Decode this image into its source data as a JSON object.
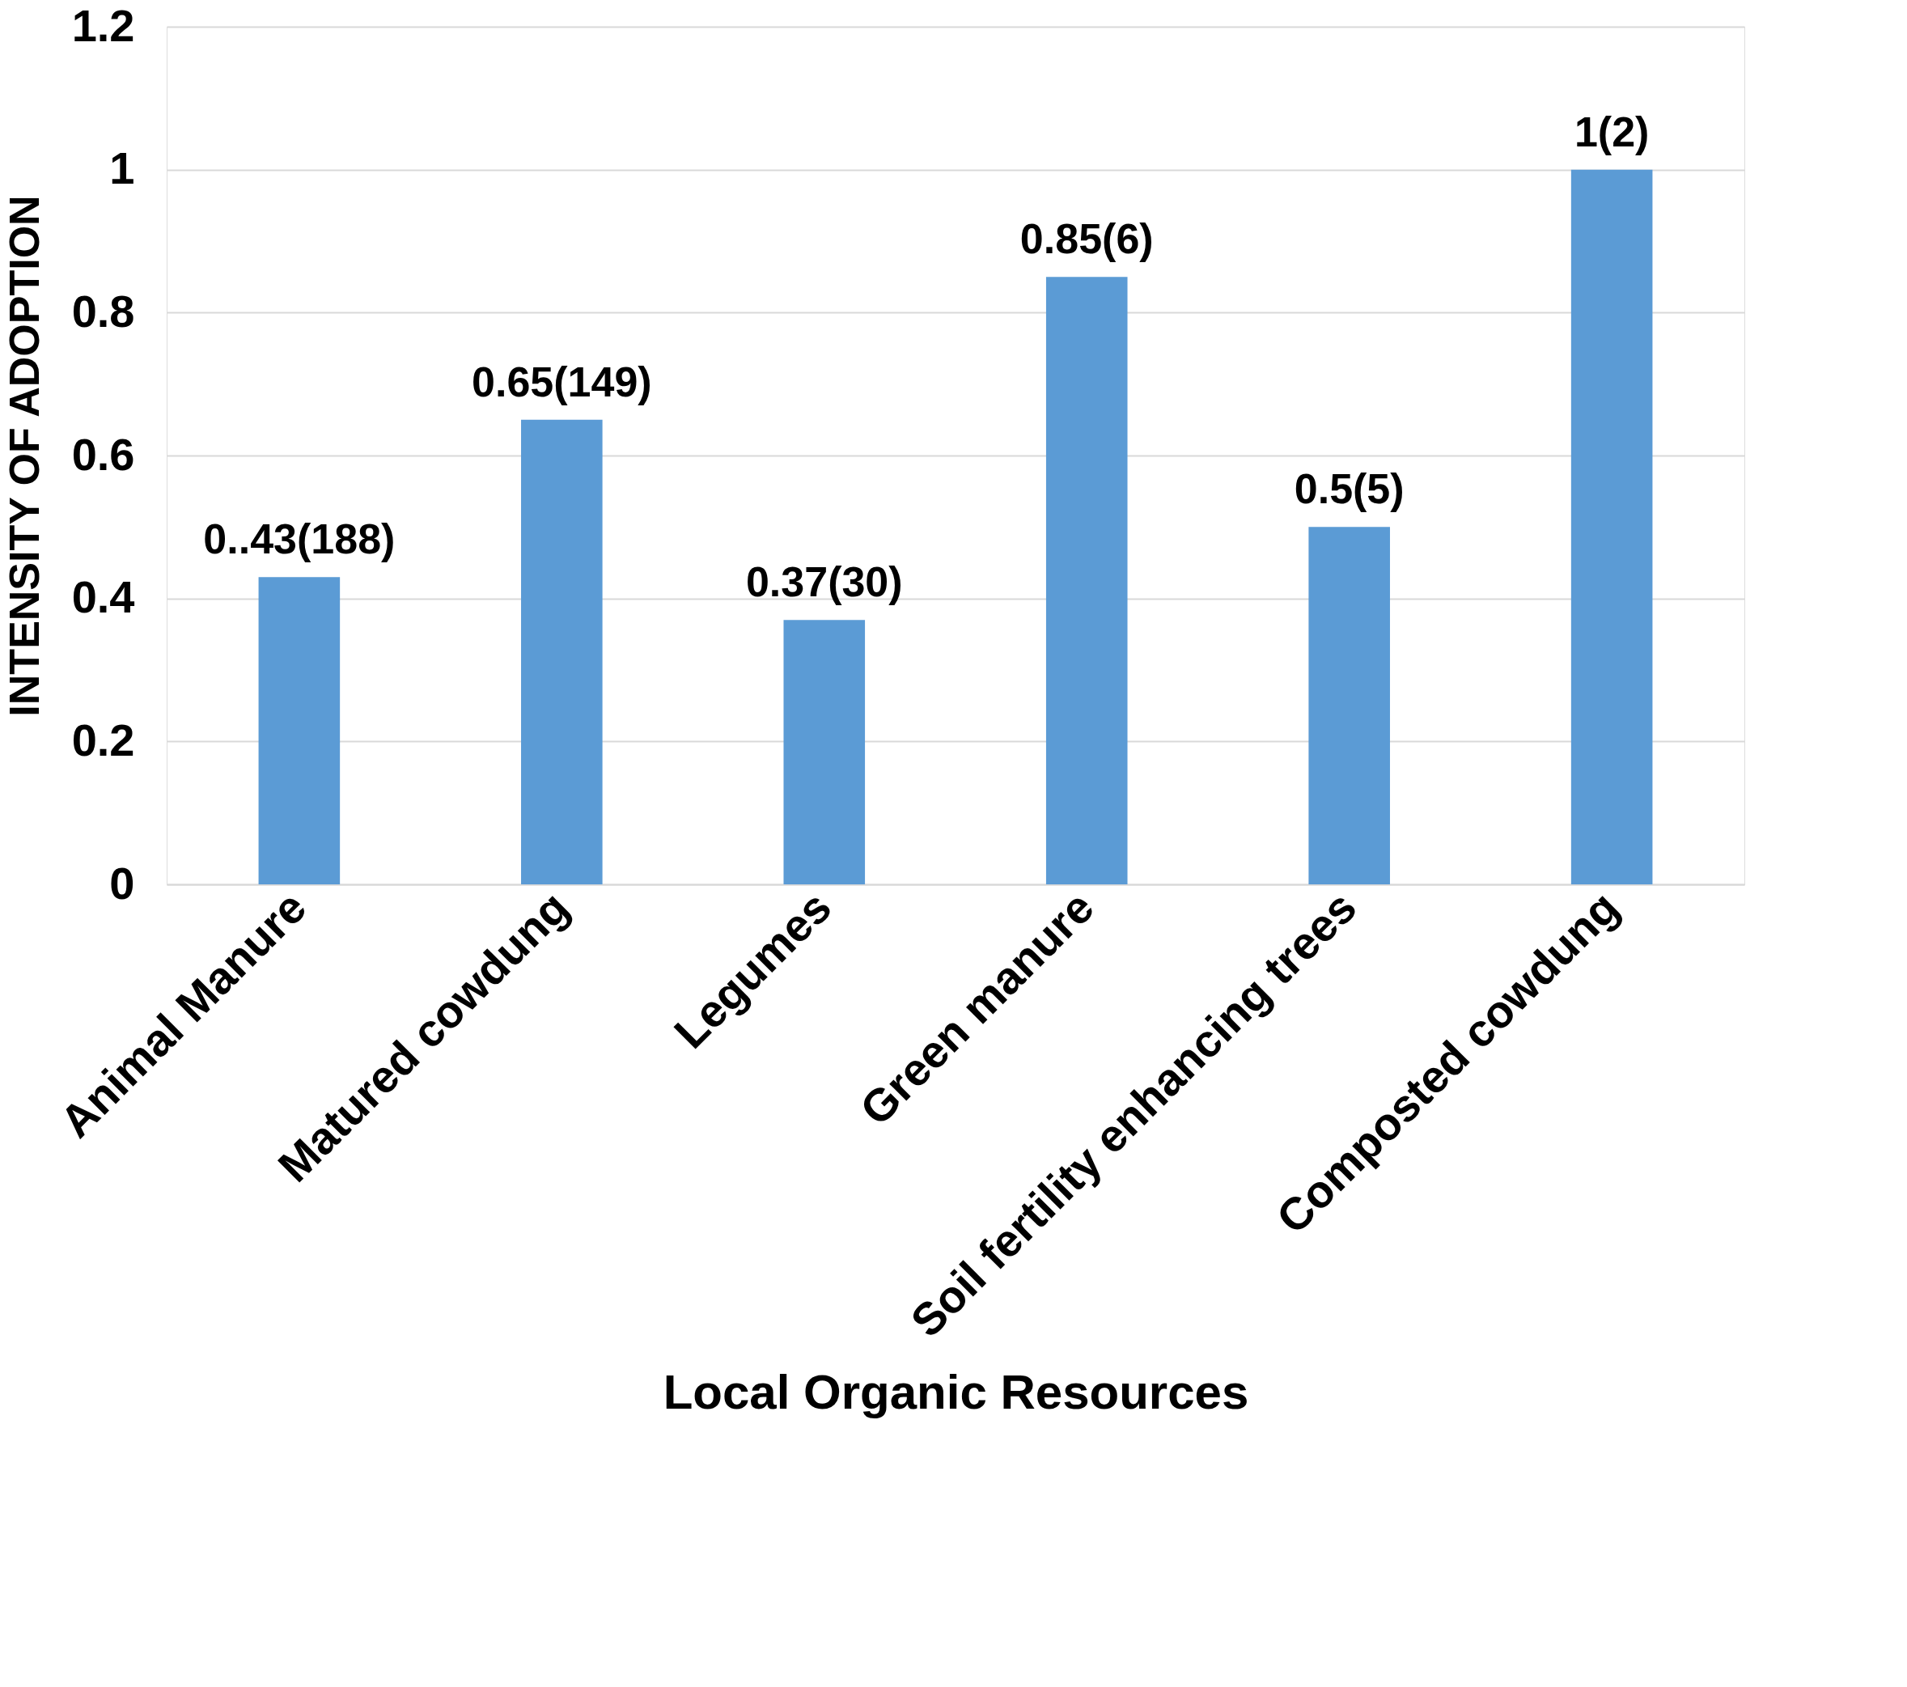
{
  "chart_data": {
    "type": "bar",
    "xlabel": "Local Organic Resources",
    "ylabel": "INTENSITY OF ADOPTION",
    "categories": [
      "Animal Manure",
      "Matured cowdung",
      "Legumes",
      "Green manure",
      "Soil fertility enhancing trees",
      "Composted cowdung"
    ],
    "values": [
      0.43,
      0.65,
      0.37,
      0.85,
      0.5,
      1
    ],
    "value_labels": [
      "0..43(188)",
      "0.65(149)",
      "0.37(30)",
      "0.85(6)",
      "0.5(5)",
      "1(2)"
    ],
    "color": "#5b9bd5",
    "ylim": [
      0,
      1.2
    ],
    "yticks": [
      0,
      0.2,
      0.4,
      0.6,
      0.8,
      1,
      1.2
    ],
    "grid": "y"
  }
}
